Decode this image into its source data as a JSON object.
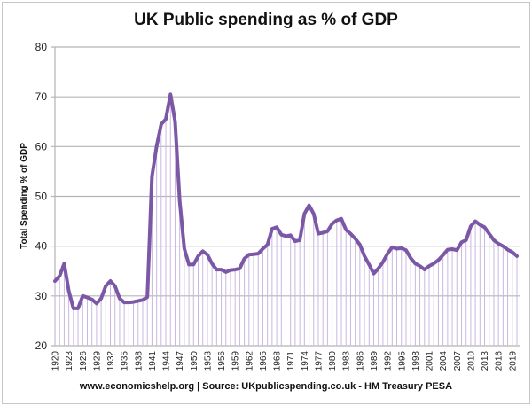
{
  "chart_data": {
    "type": "line",
    "title": "UK Public spending as % of GDP",
    "ylabel": "Total Spending % of GDP",
    "xlabel": "",
    "footer": "www.economicshelp.org | Source: UKpublicspending.co.uk - HM Treasury PESA",
    "ylim": [
      20,
      80
    ],
    "yticks": [
      20,
      30,
      40,
      50,
      60,
      70,
      80
    ],
    "xticks": [
      1920,
      1923,
      1926,
      1929,
      1932,
      1935,
      1938,
      1941,
      1944,
      1947,
      1950,
      1953,
      1956,
      1959,
      1962,
      1965,
      1968,
      1971,
      1974,
      1977,
      1980,
      1983,
      1986,
      1989,
      1992,
      1995,
      1998,
      2001,
      2004,
      2007,
      2010,
      2013,
      2016,
      2019
    ],
    "grid": true,
    "line_color": "#7b57a6",
    "dropline_color": "#c9b8e0",
    "x": [
      1920,
      1921,
      1922,
      1923,
      1924,
      1925,
      1926,
      1927,
      1928,
      1929,
      1930,
      1931,
      1932,
      1933,
      1934,
      1935,
      1936,
      1937,
      1938,
      1939,
      1940,
      1941,
      1942,
      1943,
      1944,
      1945,
      1946,
      1947,
      1948,
      1949,
      1950,
      1951,
      1952,
      1953,
      1954,
      1955,
      1956,
      1957,
      1958,
      1959,
      1960,
      1961,
      1962,
      1963,
      1964,
      1965,
      1966,
      1967,
      1968,
      1969,
      1970,
      1971,
      1972,
      1973,
      1974,
      1975,
      1976,
      1977,
      1978,
      1979,
      1980,
      1981,
      1982,
      1983,
      1984,
      1985,
      1986,
      1987,
      1988,
      1989,
      1990,
      1991,
      1992,
      1993,
      1994,
      1995,
      1996,
      1997,
      1998,
      1999,
      2000,
      2001,
      2002,
      2003,
      2004,
      2005,
      2006,
      2007,
      2008,
      2009,
      2010,
      2011,
      2012,
      2013,
      2014,
      2015,
      2016,
      2017,
      2018,
      2019,
      2020
    ],
    "values": [
      33,
      34,
      36.5,
      31,
      27.5,
      27.5,
      30,
      29.7,
      29.3,
      28.5,
      29.5,
      32,
      33,
      32,
      29.5,
      28.7,
      28.7,
      28.8,
      29,
      29.2,
      29.8,
      54,
      60,
      64.5,
      65.5,
      70.5,
      65,
      49,
      39.5,
      36.3,
      36.3,
      38,
      39,
      38.3,
      36.5,
      35.3,
      35.3,
      34.8,
      35.2,
      35.3,
      35.5,
      37.5,
      38.3,
      38.4,
      38.5,
      39.5,
      40.3,
      43.5,
      43.8,
      42.3,
      42,
      42.2,
      41,
      41.2,
      46.5,
      48.2,
      46.5,
      42.5,
      42.7,
      43,
      44.5,
      45.2,
      45.5,
      43.3,
      42.5,
      41.5,
      40.3,
      38,
      36.3,
      34.5,
      35.5,
      36.8,
      38.5,
      39.8,
      39.5,
      39.6,
      39.2,
      37.6,
      36.5,
      36,
      35.3,
      36,
      36.5,
      37.2,
      38.2,
      39.3,
      39.4,
      39.2,
      40.8,
      41.2,
      44,
      45,
      44.3,
      43.8,
      42.5,
      41.2,
      40.5,
      40,
      39.3,
      38.8,
      38
    ]
  }
}
